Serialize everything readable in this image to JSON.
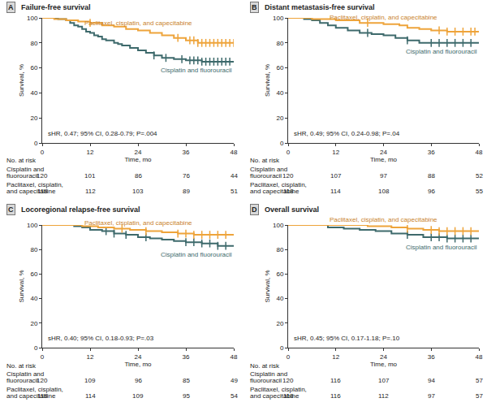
{
  "chart_data": [
    {
      "type": "line",
      "panel": "A",
      "title": "Failure-free survival",
      "xlabel": "Time, mo",
      "ylabel": "Survival, %",
      "xlim": [
        0,
        48
      ],
      "xticks": [
        0,
        12,
        24,
        36,
        48
      ],
      "ylim": [
        0,
        100
      ],
      "yticks": [
        0,
        20,
        40,
        60,
        80,
        100
      ],
      "grid": false,
      "line_style": "step",
      "marker": "tick",
      "annotation": "sHR, 0.47; 95% CI, 0.28-0.79; P=.004",
      "risk_table": {
        "title": "No. at risk",
        "times": [
          0,
          12,
          24,
          36,
          48
        ]
      },
      "series": [
        {
          "name": "Cisplatin and fluorouracil",
          "color": "#3e6a6c",
          "x": [
            0,
            4,
            6,
            7,
            8,
            9,
            10,
            11,
            12,
            13,
            14,
            15,
            16,
            18,
            19,
            20,
            22,
            24,
            26,
            28,
            30,
            33,
            36,
            40,
            48
          ],
          "values": [
            100,
            99,
            98,
            96,
            94,
            93,
            91,
            89,
            88,
            86,
            85,
            83,
            82,
            80,
            79,
            78,
            76,
            74,
            72,
            70,
            68,
            67,
            66,
            65,
            65
          ],
          "censored": [
            28,
            31,
            35,
            37,
            38,
            39,
            40,
            41,
            42,
            43,
            44,
            45,
            46,
            47
          ],
          "table_label": [
            "Cisplatin and",
            "fluorouracil"
          ],
          "at_risk": [
            120,
            101,
            86,
            76,
            44
          ]
        },
        {
          "name": "Paclitaxel, cisplatin, and capecitabine",
          "color": "#eea43b",
          "x": [
            0,
            3,
            6,
            9,
            12,
            15,
            18,
            21,
            24,
            27,
            30,
            33,
            36,
            39,
            48
          ],
          "values": [
            100,
            99,
            98,
            97,
            96,
            94,
            93,
            91,
            90,
            88,
            86,
            84,
            82,
            80,
            80
          ],
          "censored": [
            12,
            34,
            37,
            38,
            39,
            40,
            41,
            42,
            43,
            44,
            45,
            46,
            47,
            48
          ],
          "table_label": [
            "Paclitaxel, cisplatin,",
            "and capecitabine"
          ],
          "at_risk": [
            118,
            112,
            103,
            89,
            51
          ]
        }
      ]
    },
    {
      "type": "line",
      "panel": "B",
      "title": "Distant metastasis-free survival",
      "xlabel": "Time, mo",
      "ylabel": "Survival, %",
      "xlim": [
        0,
        48
      ],
      "xticks": [
        0,
        12,
        24,
        36,
        48
      ],
      "ylim": [
        0,
        100
      ],
      "yticks": [
        0,
        20,
        40,
        60,
        80,
        100
      ],
      "grid": false,
      "line_style": "step",
      "marker": "tick",
      "annotation": "sHR, 0.49; 95% CI, 0.24-0.98; P=.04",
      "risk_table": {
        "title": "No. at risk",
        "times": [
          0,
          12,
          24,
          36,
          48
        ]
      },
      "series": [
        {
          "name": "Cisplatin and fluorouracil",
          "color": "#3e6a6c",
          "x": [
            0,
            4,
            6,
            8,
            10,
            12,
            15,
            18,
            21,
            24,
            27,
            30,
            33,
            48
          ],
          "values": [
            100,
            99,
            98,
            96,
            94,
            92,
            90,
            88,
            87,
            86,
            84,
            82,
            80,
            80
          ],
          "censored": [
            20,
            30,
            36,
            38,
            40,
            42,
            44,
            46
          ],
          "table_label": [
            "Cisplatin and",
            "fluorouracil"
          ],
          "at_risk": [
            120,
            107,
            97,
            88,
            52
          ]
        },
        {
          "name": "Paclitaxel, cisplatin, and capecitabine",
          "color": "#eea43b",
          "x": [
            0,
            6,
            12,
            18,
            24,
            28,
            30,
            33,
            36,
            40,
            48
          ],
          "values": [
            100,
            99,
            98,
            96,
            95,
            94,
            92,
            91,
            90,
            89,
            89
          ],
          "censored": [
            20,
            38,
            40,
            42,
            44,
            46,
            47
          ],
          "table_label": [
            "Paclitaxel, cisplatin,",
            "and capecitabine"
          ],
          "at_risk": [
            118,
            114,
            108,
            96,
            55
          ]
        }
      ]
    },
    {
      "type": "line",
      "panel": "C",
      "title": "Locoregional relapse-free survival",
      "xlabel": "Time, mo",
      "ylabel": "Survival, %",
      "xlim": [
        0,
        48
      ],
      "xticks": [
        0,
        12,
        24,
        36,
        48
      ],
      "ylim": [
        0,
        100
      ],
      "yticks": [
        0,
        20,
        40,
        60,
        80,
        100
      ],
      "grid": false,
      "line_style": "step",
      "marker": "tick",
      "annotation": "sHR, 0.40; 95% CI, 0.18-0.93; P=.03",
      "risk_table": {
        "title": "No. at risk",
        "times": [
          0,
          12,
          24,
          36,
          48
        ]
      },
      "series": [
        {
          "name": "Cisplatin and fluorouracil",
          "color": "#3e6a6c",
          "x": [
            0,
            8,
            10,
            12,
            15,
            18,
            21,
            24,
            27,
            30,
            33,
            36,
            40,
            44,
            48
          ],
          "values": [
            100,
            99,
            98,
            96,
            95,
            93,
            92,
            90,
            89,
            88,
            87,
            86,
            85,
            83,
            83
          ],
          "censored": [
            16,
            18,
            21,
            26,
            36,
            38,
            40,
            42,
            44,
            46
          ],
          "table_label": [
            "Cisplatin and",
            "fluorouracil"
          ],
          "at_risk": [
            120,
            109,
            96,
            85,
            49
          ]
        },
        {
          "name": "Paclitaxel, cisplatin, and capecitabine",
          "color": "#eea43b",
          "x": [
            0,
            10,
            14,
            18,
            22,
            26,
            30,
            34,
            38,
            48
          ],
          "values": [
            100,
            99,
            98,
            97,
            96,
            95,
            94,
            93,
            92,
            92
          ],
          "censored": [
            20,
            26,
            34,
            36,
            38,
            40,
            42,
            44,
            46
          ],
          "table_label": [
            "Paclitaxel, cisplatin,",
            "and capecitabine"
          ],
          "at_risk": [
            118,
            114,
            109,
            95,
            54
          ]
        }
      ]
    },
    {
      "type": "line",
      "panel": "D",
      "title": "Overall survival",
      "xlabel": "Time, mo",
      "ylabel": "Survival, %",
      "xlim": [
        0,
        48
      ],
      "xticks": [
        0,
        12,
        24,
        36,
        48
      ],
      "ylim": [
        0,
        100
      ],
      "yticks": [
        0,
        20,
        40,
        60,
        80,
        100
      ],
      "grid": false,
      "line_style": "step",
      "marker": "tick",
      "annotation": "sHR, 0.45; 95% CI, 0.17-1.18; P=.10",
      "risk_table": {
        "title": "No. at risk",
        "times": [
          0,
          12,
          24,
          36,
          48
        ]
      },
      "series": [
        {
          "name": "Cisplatin and fluorouracil",
          "color": "#3e6a6c",
          "x": [
            0,
            10,
            14,
            18,
            22,
            26,
            30,
            34,
            40,
            48
          ],
          "values": [
            100,
            98,
            97,
            96,
            95,
            93,
            92,
            90,
            89,
            89
          ],
          "censored": [
            30,
            36,
            38,
            40,
            42,
            44,
            46
          ],
          "table_label": [
            "Cisplatin and",
            "fluorouracil"
          ],
          "at_risk": [
            120,
            116,
            107,
            94,
            57
          ]
        },
        {
          "name": "Paclitaxel, cisplatin, and capecitabine",
          "color": "#eea43b",
          "x": [
            0,
            20,
            26,
            30,
            34,
            38,
            48
          ],
          "values": [
            100,
            99,
            98,
            97,
            96,
            95,
            95
          ],
          "censored": [
            30,
            36,
            38,
            40,
            42,
            44,
            46
          ],
          "table_label": [
            "Paclitaxel, cisplatin,",
            "and capecitabine"
          ],
          "at_risk": [
            118,
            116,
            112,
            97,
            57
          ]
        }
      ]
    }
  ]
}
